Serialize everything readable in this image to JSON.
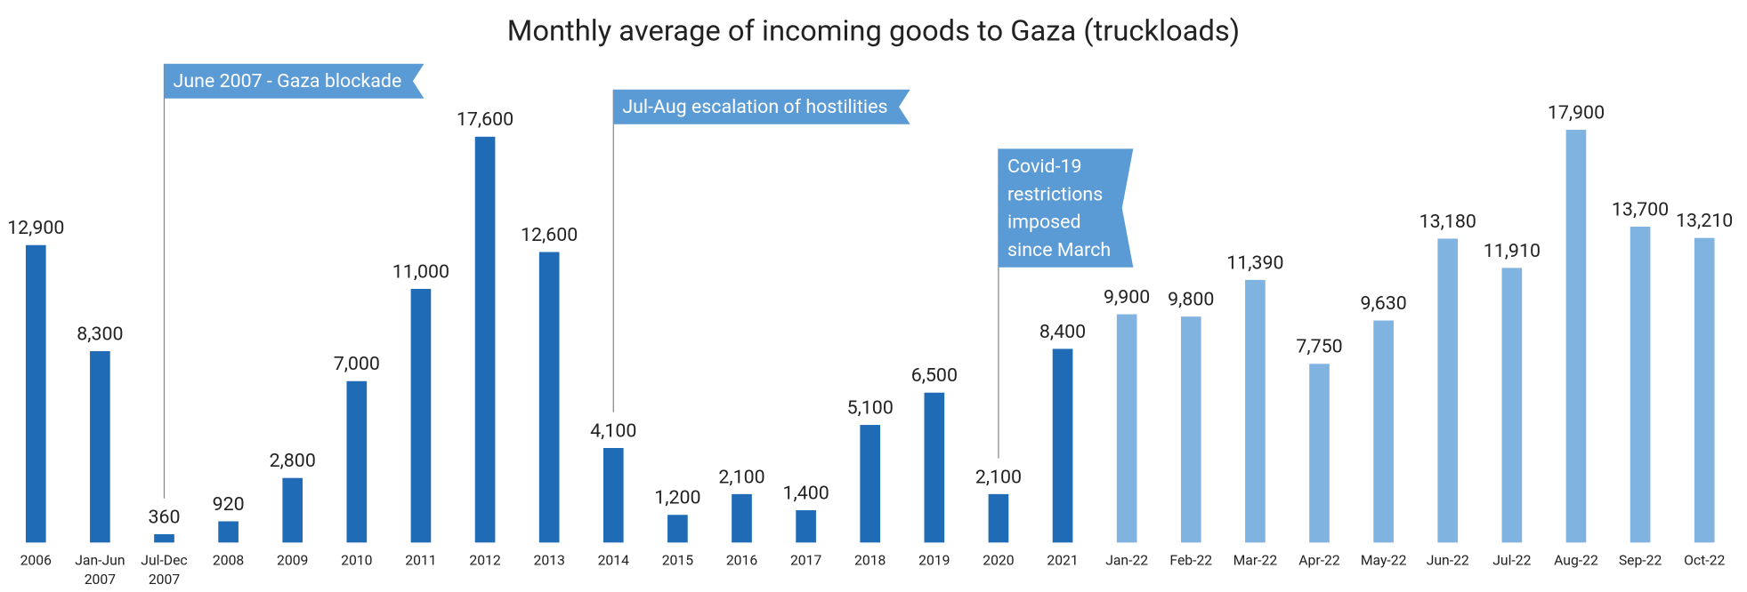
{
  "chart_data": {
    "type": "bar",
    "title": "Monthly average of incoming goods to Gaza (truckloads)",
    "categories": [
      "2006",
      "Jan-Jun 2007",
      "Jul-Dec 2007",
      "2008",
      "2009",
      "2010",
      "2011",
      "2012",
      "2013",
      "2014",
      "2015",
      "2016",
      "2017",
      "2018",
      "2019",
      "2020",
      "2021",
      "Jan-22",
      "Feb-22",
      "Mar-22",
      "Apr-22",
      "May-22",
      "Jun-22",
      "Jul-22",
      "Aug-22",
      "Sep-22",
      "Oct-22"
    ],
    "values": [
      12900,
      8300,
      360,
      920,
      2800,
      7000,
      11000,
      17600,
      12600,
      4100,
      1200,
      2100,
      1400,
      5100,
      6500,
      2100,
      8400,
      9900,
      9800,
      11390,
      7750,
      9630,
      13180,
      11910,
      17900,
      13700,
      13210
    ],
    "value_labels": [
      "12,900",
      "8,300",
      "360",
      "920",
      "2,800",
      "7,000",
      "11,000",
      "17,600",
      "12,600",
      "4,100",
      "1,200",
      "2,100",
      "1,400",
      "5,100",
      "6,500",
      "2,100",
      "8,400",
      "9,900",
      "9,800",
      "11,390",
      "7,750",
      "9,630",
      "13,180",
      "11,910",
      "17,900",
      "13,700",
      "13,210"
    ],
    "colors": [
      "#1f6bb6",
      "#1f6bb6",
      "#1f6bb6",
      "#1f6bb6",
      "#1f6bb6",
      "#1f6bb6",
      "#1f6bb6",
      "#1f6bb6",
      "#1f6bb6",
      "#1f6bb6",
      "#1f6bb6",
      "#1f6bb6",
      "#1f6bb6",
      "#1f6bb6",
      "#1f6bb6",
      "#1f6bb6",
      "#1f6bb6",
      "#80b3e0",
      "#80b3e0",
      "#80b3e0",
      "#80b3e0",
      "#80b3e0",
      "#80b3e0",
      "#80b3e0",
      "#80b3e0",
      "#80b3e0",
      "#80b3e0"
    ],
    "annotations": [
      {
        "category": "Jul-Dec 2007",
        "lines": [
          "June 2007 - Gaza blockade"
        ]
      },
      {
        "category": "2014",
        "lines": [
          "Jul-Aug escalation of hostilities"
        ]
      },
      {
        "category": "2020",
        "lines": [
          "Covid-19",
          "restrictions",
          "imposed",
          "since March"
        ]
      }
    ]
  }
}
